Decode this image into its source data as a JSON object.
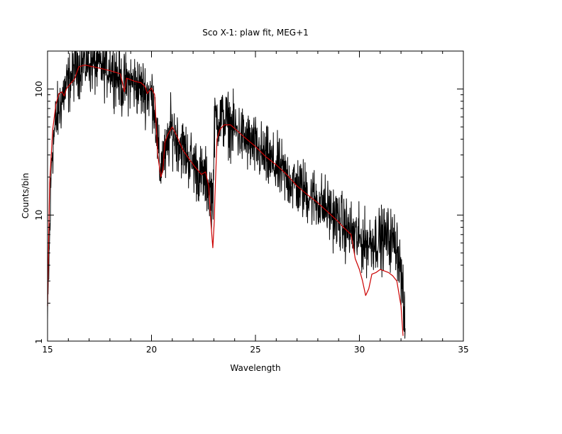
{
  "chart_data": {
    "type": "line",
    "title": "Sco X-1: plaw fit, MEG+1",
    "xlabel": "Wavelength",
    "ylabel": "Counts/bin",
    "xlim": [
      15,
      35
    ],
    "ylim": [
      1,
      200
    ],
    "yscale": "log",
    "grid": false,
    "x_ticks": [
      15,
      20,
      25,
      30,
      35
    ],
    "x_tick_labels": [
      "15",
      "20",
      "25",
      "30",
      "35"
    ],
    "y_ticks": [
      1,
      10,
      100
    ],
    "y_tick_labels": [
      "1",
      "10",
      "100"
    ],
    "series": [
      {
        "color": "#000000",
        "style": "noisy data",
        "points": [
          [
            15.0,
            1.4
          ],
          [
            15.2,
            30
          ],
          [
            15.4,
            55
          ],
          [
            15.6,
            75
          ],
          [
            15.8,
            95
          ],
          [
            16.0,
            110
          ],
          [
            16.3,
            145
          ],
          [
            16.6,
            160
          ],
          [
            17.0,
            165
          ],
          [
            17.3,
            155
          ],
          [
            17.6,
            150
          ],
          [
            18.0,
            150
          ],
          [
            18.3,
            135
          ],
          [
            18.6,
            105
          ],
          [
            18.9,
            115
          ],
          [
            19.2,
            110
          ],
          [
            19.5,
            100
          ],
          [
            19.8,
            95
          ],
          [
            20.1,
            85
          ],
          [
            20.25,
            45
          ],
          [
            20.4,
            22
          ],
          [
            20.55,
            30
          ],
          [
            20.7,
            28
          ],
          [
            20.9,
            48
          ],
          [
            21.1,
            44
          ],
          [
            21.4,
            36
          ],
          [
            21.7,
            30
          ],
          [
            22.0,
            26
          ],
          [
            22.3,
            21
          ],
          [
            22.6,
            19
          ],
          [
            22.8,
            16
          ],
          [
            22.95,
            14
          ],
          [
            23.05,
            60
          ],
          [
            23.3,
            58
          ],
          [
            23.6,
            55
          ],
          [
            24.0,
            48
          ],
          [
            24.5,
            40
          ],
          [
            25.0,
            34
          ],
          [
            25.5,
            28
          ],
          [
            26.0,
            24
          ],
          [
            26.5,
            20
          ],
          [
            27.0,
            17
          ],
          [
            27.5,
            15
          ],
          [
            28.0,
            13
          ],
          [
            28.5,
            11
          ],
          [
            29.0,
            9
          ],
          [
            29.3,
            8
          ],
          [
            29.5,
            7.5
          ],
          [
            29.8,
            6.8
          ],
          [
            30.0,
            6.3
          ],
          [
            30.3,
            6.0
          ],
          [
            30.6,
            6.2
          ],
          [
            31.0,
            6.5
          ],
          [
            31.4,
            6.6
          ],
          [
            31.8,
            6.0
          ],
          [
            32.0,
            3.5
          ],
          [
            32.2,
            1.2
          ]
        ],
        "noise": 0.12
      },
      {
        "color": "#cc0000",
        "style": "model",
        "points": [
          [
            15.0,
            1.9
          ],
          [
            15.1,
            18
          ],
          [
            15.25,
            48
          ],
          [
            15.4,
            75
          ],
          [
            15.55,
            92
          ],
          [
            15.7,
            95
          ],
          [
            15.8,
            88
          ],
          [
            15.9,
            100
          ],
          [
            16.1,
            110
          ],
          [
            16.3,
            120
          ],
          [
            16.5,
            150
          ],
          [
            16.8,
            155
          ],
          [
            17.2,
            150
          ],
          [
            17.6,
            145
          ],
          [
            18.0,
            140
          ],
          [
            18.5,
            132
          ],
          [
            18.7,
            95
          ],
          [
            18.8,
            122
          ],
          [
            19.2,
            115
          ],
          [
            19.5,
            112
          ],
          [
            19.7,
            104
          ],
          [
            19.8,
            92
          ],
          [
            20.0,
            102
          ],
          [
            20.15,
            90
          ],
          [
            20.3,
            30
          ],
          [
            20.45,
            20
          ],
          [
            20.55,
            23
          ],
          [
            20.65,
            38
          ],
          [
            20.8,
            44
          ],
          [
            21.0,
            50
          ],
          [
            21.2,
            43
          ],
          [
            21.5,
            33
          ],
          [
            21.8,
            28
          ],
          [
            22.1,
            24
          ],
          [
            22.4,
            21
          ],
          [
            22.6,
            22
          ],
          [
            22.75,
            17
          ],
          [
            22.85,
            9
          ],
          [
            22.95,
            5.5
          ],
          [
            23.02,
            9
          ],
          [
            23.05,
            14
          ],
          [
            23.15,
            40
          ],
          [
            23.3,
            48
          ],
          [
            23.5,
            52
          ],
          [
            23.8,
            52
          ],
          [
            24.1,
            47
          ],
          [
            24.5,
            41
          ],
          [
            25.0,
            35
          ],
          [
            25.5,
            29
          ],
          [
            26.0,
            25
          ],
          [
            26.5,
            21
          ],
          [
            27.0,
            17
          ],
          [
            27.5,
            14.5
          ],
          [
            28.0,
            12.5
          ],
          [
            28.5,
            10.5
          ],
          [
            29.0,
            8.8
          ],
          [
            29.3,
            7.8
          ],
          [
            29.6,
            7.0
          ],
          [
            29.8,
            4.5
          ],
          [
            30.0,
            3.7
          ],
          [
            30.15,
            3.0
          ],
          [
            30.3,
            2.3
          ],
          [
            30.45,
            2.6
          ],
          [
            30.6,
            3.4
          ],
          [
            30.8,
            3.5
          ],
          [
            31.0,
            3.7
          ],
          [
            31.2,
            3.6
          ],
          [
            31.4,
            3.5
          ],
          [
            31.6,
            3.3
          ],
          [
            31.8,
            3.0
          ],
          [
            32.0,
            1.9
          ],
          [
            32.1,
            1.1
          ]
        ],
        "noise": 0
      }
    ]
  }
}
